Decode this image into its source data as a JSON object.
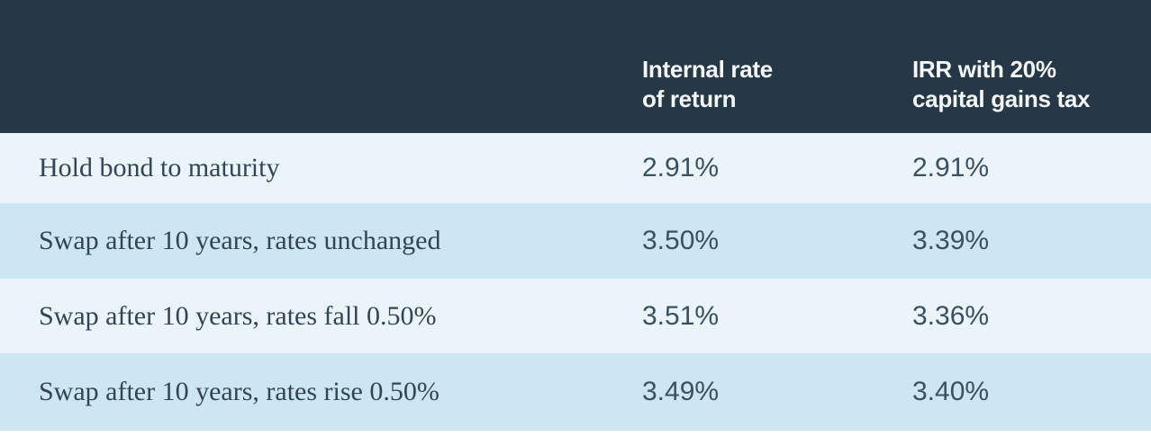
{
  "colors": {
    "page_bg": "#ffffff",
    "header_bg": "#263845",
    "header_text": "#f4f8fa",
    "row_light_bg": "#ebf4f9",
    "row_blue_bg": "#cde7f2",
    "label_text": "#334554",
    "value_text": "#3a5160"
  },
  "table": {
    "columns": [
      {
        "id": "scenario",
        "header_lines": [
          "",
          ""
        ]
      },
      {
        "id": "irr",
        "header_lines": [
          "Internal rate",
          "of return"
        ]
      },
      {
        "id": "irr_after_tax",
        "header_lines": [
          "IRR with 20%",
          "capital gains tax"
        ]
      }
    ],
    "rows": [
      {
        "label": "Hold bond to maturity",
        "irr": "2.91%",
        "irr_tax": "2.91%"
      },
      {
        "label": "Swap after 10 years, rates unchanged",
        "irr": "3.50%",
        "irr_tax": "3.39%"
      },
      {
        "label": "Swap after 10 years, rates fall 0.50%",
        "irr": "3.51%",
        "irr_tax": "3.36%"
      },
      {
        "label": "Swap after 10 years, rates rise 0.50%",
        "irr": "3.49%",
        "irr_tax": "3.40%"
      }
    ]
  },
  "chart_data": {
    "type": "table",
    "columns": [
      "",
      "Internal rate of return",
      "IRR with 20% capital gains tax"
    ],
    "rows": [
      [
        "Hold bond to maturity",
        "2.91%",
        "2.91%"
      ],
      [
        "Swap after 10 years, rates unchanged",
        "3.50%",
        "3.39%"
      ],
      [
        "Swap after 10 years, rates fall 0.50%",
        "3.51%",
        "3.36%"
      ],
      [
        "Swap after 10 years, rates rise 0.50%",
        "3.49%",
        "3.40%"
      ]
    ]
  }
}
